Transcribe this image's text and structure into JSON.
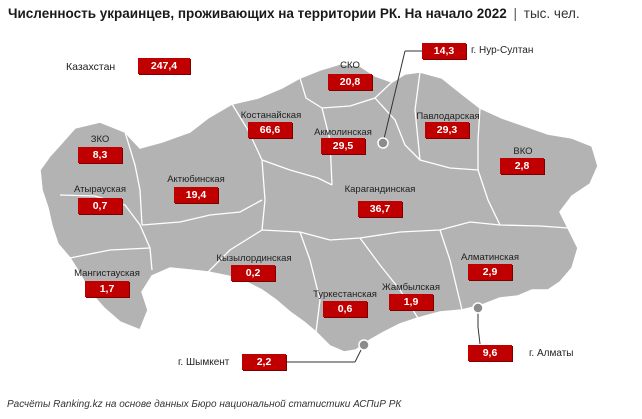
{
  "title": {
    "main": "Численность украинцев, проживающих на территории РК. На начало 2022",
    "separator": "|",
    "unit": "тыс. чел."
  },
  "country": {
    "label": "Казахстан",
    "value": "247,4"
  },
  "regions": [
    {
      "name": "СКО",
      "value": "20,8"
    },
    {
      "name": "Костанайская",
      "value": "66,6"
    },
    {
      "name": "Акмолинская",
      "value": "29,5"
    },
    {
      "name": "Павлодарская",
      "value": "29,3"
    },
    {
      "name": "ЗКО",
      "value": "8,3"
    },
    {
      "name": "ВКО",
      "value": "2,8"
    },
    {
      "name": "Атырауская",
      "value": "0,7"
    },
    {
      "name": "Актюбинская",
      "value": "19,4"
    },
    {
      "name": "Карагандинская",
      "value": "36,7"
    },
    {
      "name": "Кызылординская",
      "value": "0,2"
    },
    {
      "name": "Алматинская",
      "value": "2,9"
    },
    {
      "name": "Мангистауская",
      "value": "1,7"
    },
    {
      "name": "Туркестанская",
      "value": "0,6"
    },
    {
      "name": "Жамбылская",
      "value": "1,9"
    }
  ],
  "cities": [
    {
      "name": "г. Нур-Султан",
      "value": "14,3"
    },
    {
      "name": "г. Шымкент",
      "value": "2,2"
    },
    {
      "name": "г. Алматы",
      "value": "9,6"
    }
  ],
  "source": "Расчёты Ranking.kz на основе данных Бюро национальной статистики АСПиР РК",
  "colors": {
    "map_fill": "#b3b3b3",
    "border": "#ffffff",
    "value_box": "#c00000"
  }
}
